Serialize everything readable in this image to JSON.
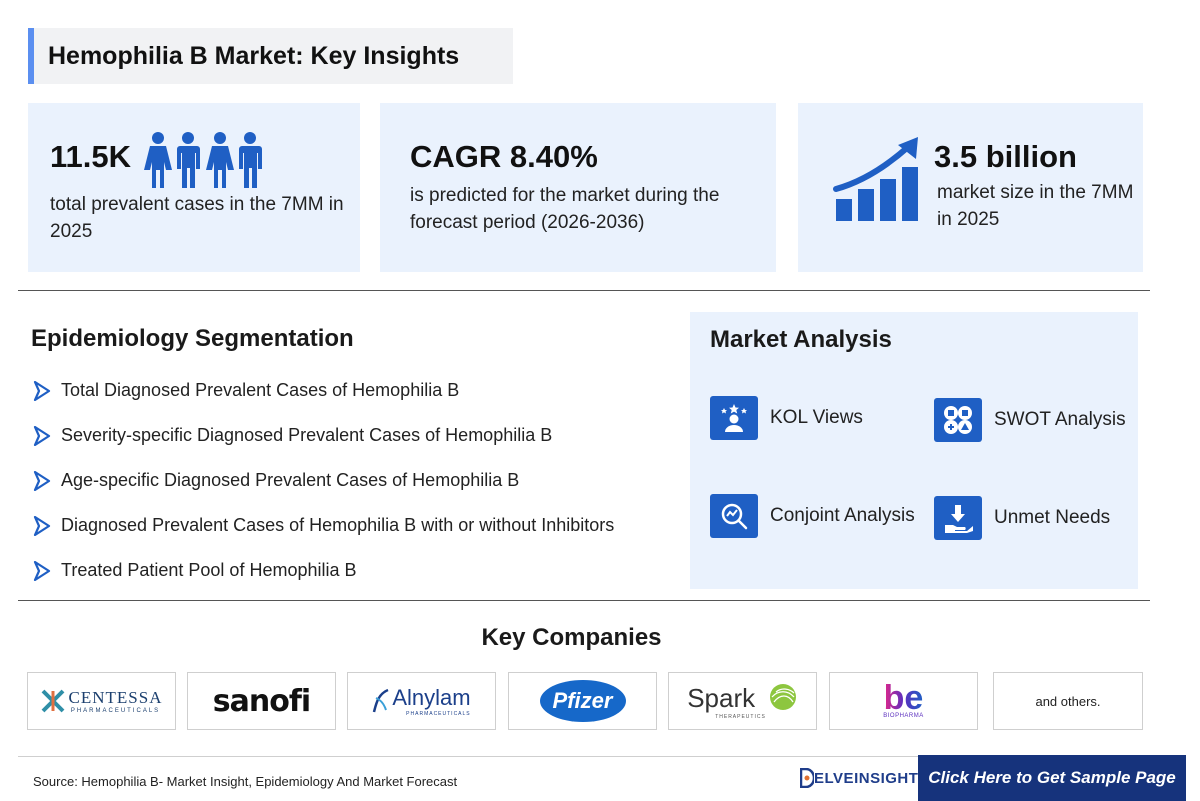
{
  "header": {
    "title": "Hemophilia B Market: Key Insights"
  },
  "stats": [
    {
      "value": "11.5K",
      "description": "total prevalent cases in the 7MM in 2025",
      "icon": "people-icon"
    },
    {
      "value": "CAGR 8.40%",
      "description": "is predicted for the market during the forecast period (2026-2036)"
    },
    {
      "value": "3.5 billion",
      "description": "market size in the 7MM in 2025",
      "icon": "growth-chart-icon"
    }
  ],
  "epidemiology": {
    "title": "Epidemiology Segmentation",
    "items": [
      "Total Diagnosed Prevalent Cases of Hemophilia B",
      "Severity-specific Diagnosed Prevalent Cases of Hemophilia B",
      "Age-specific Diagnosed Prevalent Cases of Hemophilia B",
      "Diagnosed Prevalent Cases of Hemophilia B with or without Inhibitors",
      "Treated Patient Pool of Hemophilia B"
    ]
  },
  "market_analysis": {
    "title": "Market Analysis",
    "items": [
      {
        "label": "KOL Views",
        "icon": "kol-icon"
      },
      {
        "label": "SWOT Analysis",
        "icon": "swot-icon"
      },
      {
        "label": "Conjoint Analysis",
        "icon": "conjoint-icon"
      },
      {
        "label": "Unmet Needs",
        "icon": "unmet-needs-icon"
      }
    ]
  },
  "companies": {
    "title": "Key Companies",
    "logos": [
      {
        "name": "CENTESSA",
        "sub": "PHARMACEUTICALS"
      },
      {
        "name": "sanofi"
      },
      {
        "name": "Alnylam",
        "sub": "PHARMACEUTICALS"
      },
      {
        "name": "Pfizer"
      },
      {
        "name": "Spark",
        "sub": "THERAPEUTICS"
      },
      {
        "name": "be",
        "sub": "BIOPHARMA"
      }
    ],
    "others": "and others."
  },
  "footer": {
    "source": "Source: Hemophilia B- Market Insight, Epidemiology And Market Forecast",
    "brand": "ELVEINSIGHT",
    "cta": "Click Here to Get Sample Page"
  },
  "colors": {
    "accent": "#1f5fc4",
    "panel": "#eaf2fd",
    "cta": "#16337c",
    "title_bar": "#5b8ff0"
  }
}
